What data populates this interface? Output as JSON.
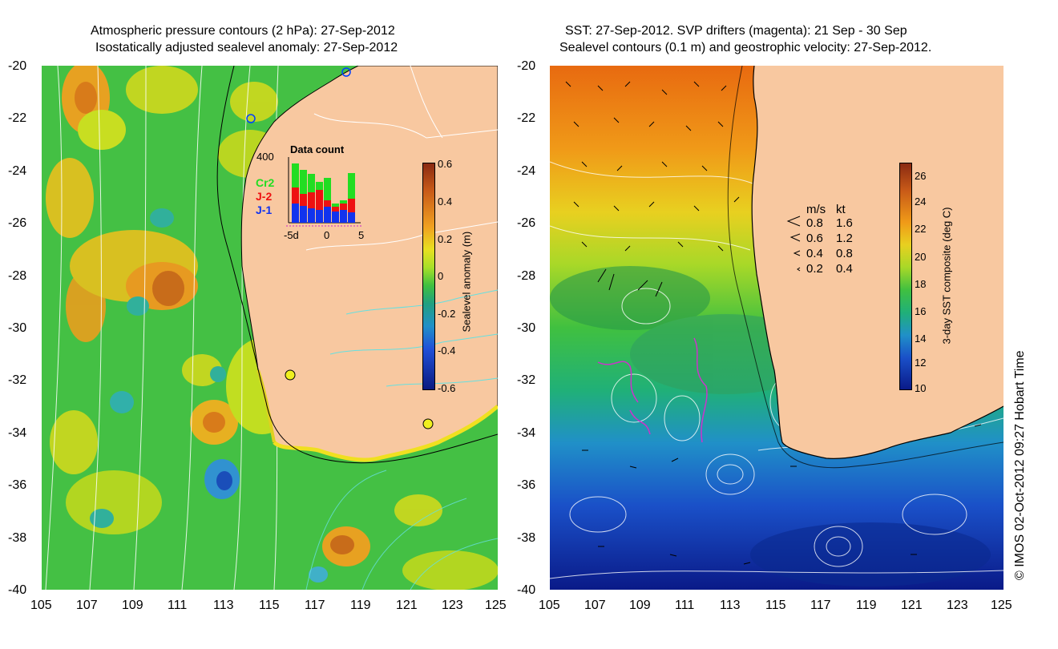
{
  "left_panel": {
    "title_line1": "Atmospheric pressure contours (2 hPa): 27-Sep-2012",
    "title_line2": "Isostatically adjusted sealevel anomaly: 27-Sep-2012",
    "colorbar_label": "Sealevel anomaly (m)",
    "colorbar_ticks": [
      "0.6",
      "0.4",
      "0.2",
      "0",
      "-0.2",
      "-0.4",
      "-0.6"
    ],
    "inset": {
      "title": "Data count",
      "ymax_label": "400",
      "x_ticks": [
        "-5d",
        "0",
        "5"
      ],
      "legend": [
        {
          "label": "Cr2",
          "color": "#22dd22"
        },
        {
          "label": "J-2",
          "color": "#ee1111"
        },
        {
          "label": "J-1",
          "color": "#1133ee"
        }
      ]
    }
  },
  "right_panel": {
    "title_line1": "SST: 27-Sep-2012. SVP drifters (magenta): 21 Sep - 30 Sep",
    "title_line2": "Sealevel contours (0.1 m) and geostrophic velocity: 27-Sep-2012.",
    "colorbar_label": "3-day SST composite (deg C)",
    "colorbar_ticks": [
      "26",
      "24",
      "22",
      "20",
      "18",
      "16",
      "14",
      "12",
      "10"
    ],
    "speed_legend": {
      "header_ms": "m/s",
      "header_kt": "kt",
      "rows": [
        {
          "ms": "0.8",
          "kt": "1.6"
        },
        {
          "ms": "0.6",
          "kt": "1.2"
        },
        {
          "ms": "0.4",
          "kt": "0.8"
        },
        {
          "ms": "0.2",
          "kt": "0.4"
        }
      ]
    }
  },
  "y_ticks": [
    "-20",
    "-22",
    "-24",
    "-26",
    "-28",
    "-30",
    "-32",
    "-34",
    "-36",
    "-38",
    "-40"
  ],
  "x_ticks": [
    "105",
    "107",
    "109",
    "111",
    "113",
    "115",
    "117",
    "119",
    "121",
    "123",
    "125"
  ],
  "credit": "© IMOS 02-Oct-2012 09:27 Hobart Time",
  "colors": {
    "land": "#f8c8a0",
    "anomaly_bg": "#44c044",
    "sst_bg": "#2aa04a"
  }
}
